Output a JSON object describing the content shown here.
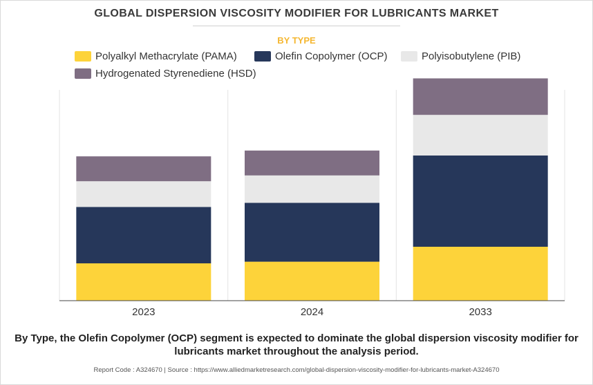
{
  "header": {
    "title": "GLOBAL DISPERSION VISCOSITY MODIFIER FOR LUBRICANTS MARKET",
    "subtitle": "BY TYPE"
  },
  "chart_data": {
    "type": "bar",
    "stacked": true,
    "categories": [
      "2023",
      "2024",
      "2033"
    ],
    "series": [
      {
        "name": "Polyalkyl Methacrylate (PAMA)",
        "color": "#fdd33a",
        "values": [
          45,
          47,
          65
        ]
      },
      {
        "name": "Olefin Copolymer (OCP)",
        "color": "#26375a",
        "values": [
          68,
          71,
          110
        ]
      },
      {
        "name": "Polyisobutylene (PIB)",
        "color": "#e8e8e8",
        "values": [
          31,
          33,
          49
        ]
      },
      {
        "name": "Hydrogenated Styrenediene (HSD)",
        "color": "#7f6e83",
        "values": [
          30,
          30,
          44
        ]
      }
    ],
    "legend_position": "top",
    "y_axis_visible": false,
    "grid": "vertical separators between categories"
  },
  "footer": {
    "summary": "By Type, the Olefin Copolymer (OCP) segment is expected to dominate the global dispersion viscosity modifier for lubricants market throughout the analysis period.",
    "source": "Report Code : A324670  |  Source : https://www.alliedmarketresearch.com/global-dispersion-viscosity-modifier-for-lubricants-market-A324670"
  }
}
